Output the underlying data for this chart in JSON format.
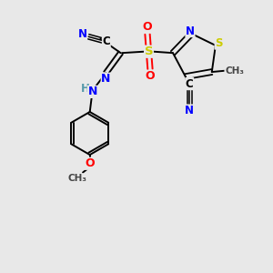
{
  "bg_color": "#e8e8e8",
  "atom_colors": {
    "C": "#000000",
    "N": "#0000ff",
    "O": "#ff0000",
    "S_ring": "#cccc00",
    "S_sulfonyl": "#cccc00",
    "H": "#5599aa",
    "bond": "#000000"
  },
  "figsize": [
    3.0,
    3.0
  ],
  "dpi": 100,
  "xlim": [
    0,
    10
  ],
  "ylim": [
    0,
    10
  ]
}
